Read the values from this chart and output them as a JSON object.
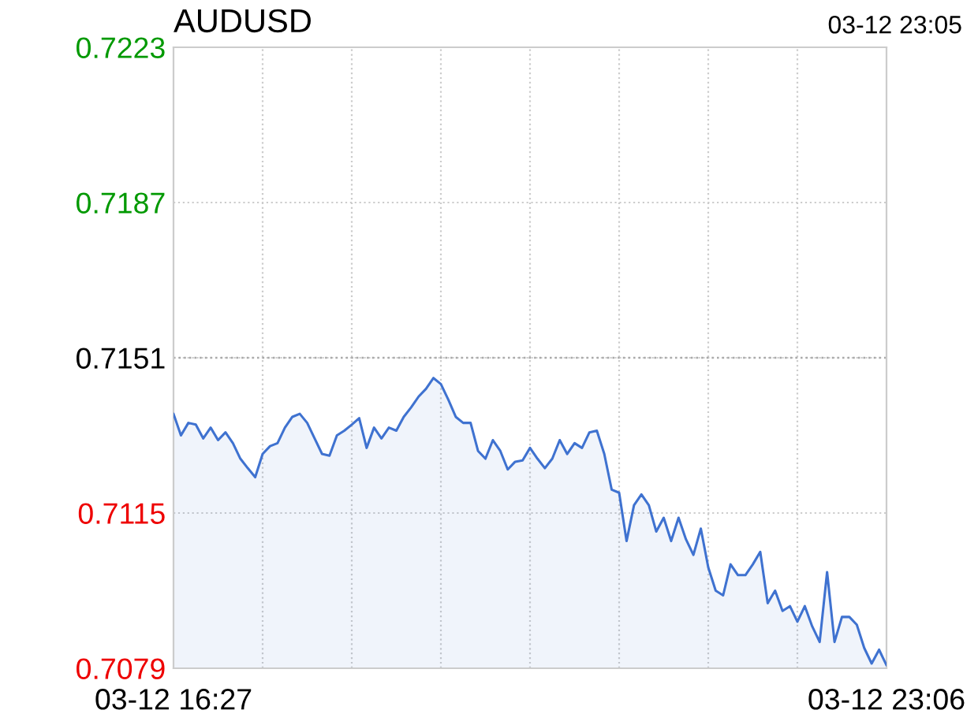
{
  "chart_data": {
    "type": "area",
    "title": "AUDUSD",
    "annotations": [
      "03-12 23:05"
    ],
    "categories": [
      "03-12 16:27",
      null,
      null,
      null,
      null,
      null,
      null,
      null,
      null,
      null,
      null,
      null,
      null,
      null,
      null,
      null,
      null,
      null,
      null,
      null,
      null,
      null,
      null,
      null,
      null,
      null,
      null,
      null,
      null,
      null,
      null,
      null,
      null,
      null,
      null,
      null,
      null,
      null,
      null,
      null,
      null,
      null,
      null,
      null,
      null,
      null,
      null,
      null,
      null,
      null,
      null,
      null,
      null,
      null,
      null,
      null,
      null,
      null,
      null,
      null,
      null,
      null,
      null,
      null,
      null,
      null,
      null,
      null,
      null,
      null,
      null,
      null,
      null,
      null,
      null,
      null,
      null,
      null,
      null,
      null,
      null,
      null,
      null,
      null,
      null,
      null,
      null,
      null,
      null,
      null,
      null,
      null,
      null,
      null,
      null,
      null,
      "03-12 23:06"
    ],
    "series": [
      {
        "color": "#3f72d0",
        "values": [
          0.7138,
          0.7133,
          0.71359,
          0.71355,
          0.71323,
          0.71348,
          0.71319,
          0.71337,
          0.71312,
          0.71276,
          0.71254,
          0.71233,
          0.71287,
          0.71305,
          0.71312,
          0.71348,
          0.71373,
          0.7138,
          0.71359,
          0.71323,
          0.71287,
          0.71283,
          0.7133,
          0.71341,
          0.71355,
          0.7137,
          0.71301,
          0.71348,
          0.71323,
          0.71348,
          0.71341,
          0.71373,
          0.71395,
          0.7142,
          0.71438,
          0.71463,
          0.71449,
          0.71413,
          0.71373,
          0.71359,
          0.71359,
          0.71294,
          0.71276,
          0.71319,
          0.71294,
          0.71251,
          0.71269,
          0.71272,
          0.71301,
          0.71276,
          0.71254,
          0.71276,
          0.71319,
          0.71287,
          0.71312,
          0.71301,
          0.71337,
          0.71341,
          0.71287,
          0.71204,
          0.71197,
          0.71085,
          0.71168,
          0.71193,
          0.71168,
          0.71107,
          0.71139,
          0.71085,
          0.71139,
          0.71089,
          0.71053,
          0.71114,
          0.71024,
          0.7097,
          0.70959,
          0.71031,
          0.71006,
          0.71006,
          0.71031,
          0.7106,
          0.70941,
          0.7097,
          0.70923,
          0.70934,
          0.70898,
          0.70934,
          0.70887,
          0.70851,
          0.71013,
          0.70851,
          0.70909,
          0.70909,
          0.70891,
          0.70837,
          0.70801,
          0.70833,
          0.70797
        ]
      }
    ],
    "ylim": [
      0.7079,
      0.7223
    ],
    "yticks": [
      0.7079,
      0.7115,
      0.7151,
      0.7187,
      0.7223
    ],
    "grid": true,
    "ref_lines": [
      {
        "axis": "y",
        "value": 0.7151,
        "color": "#aaaaaa",
        "line_style": "dotted"
      }
    ]
  }
}
